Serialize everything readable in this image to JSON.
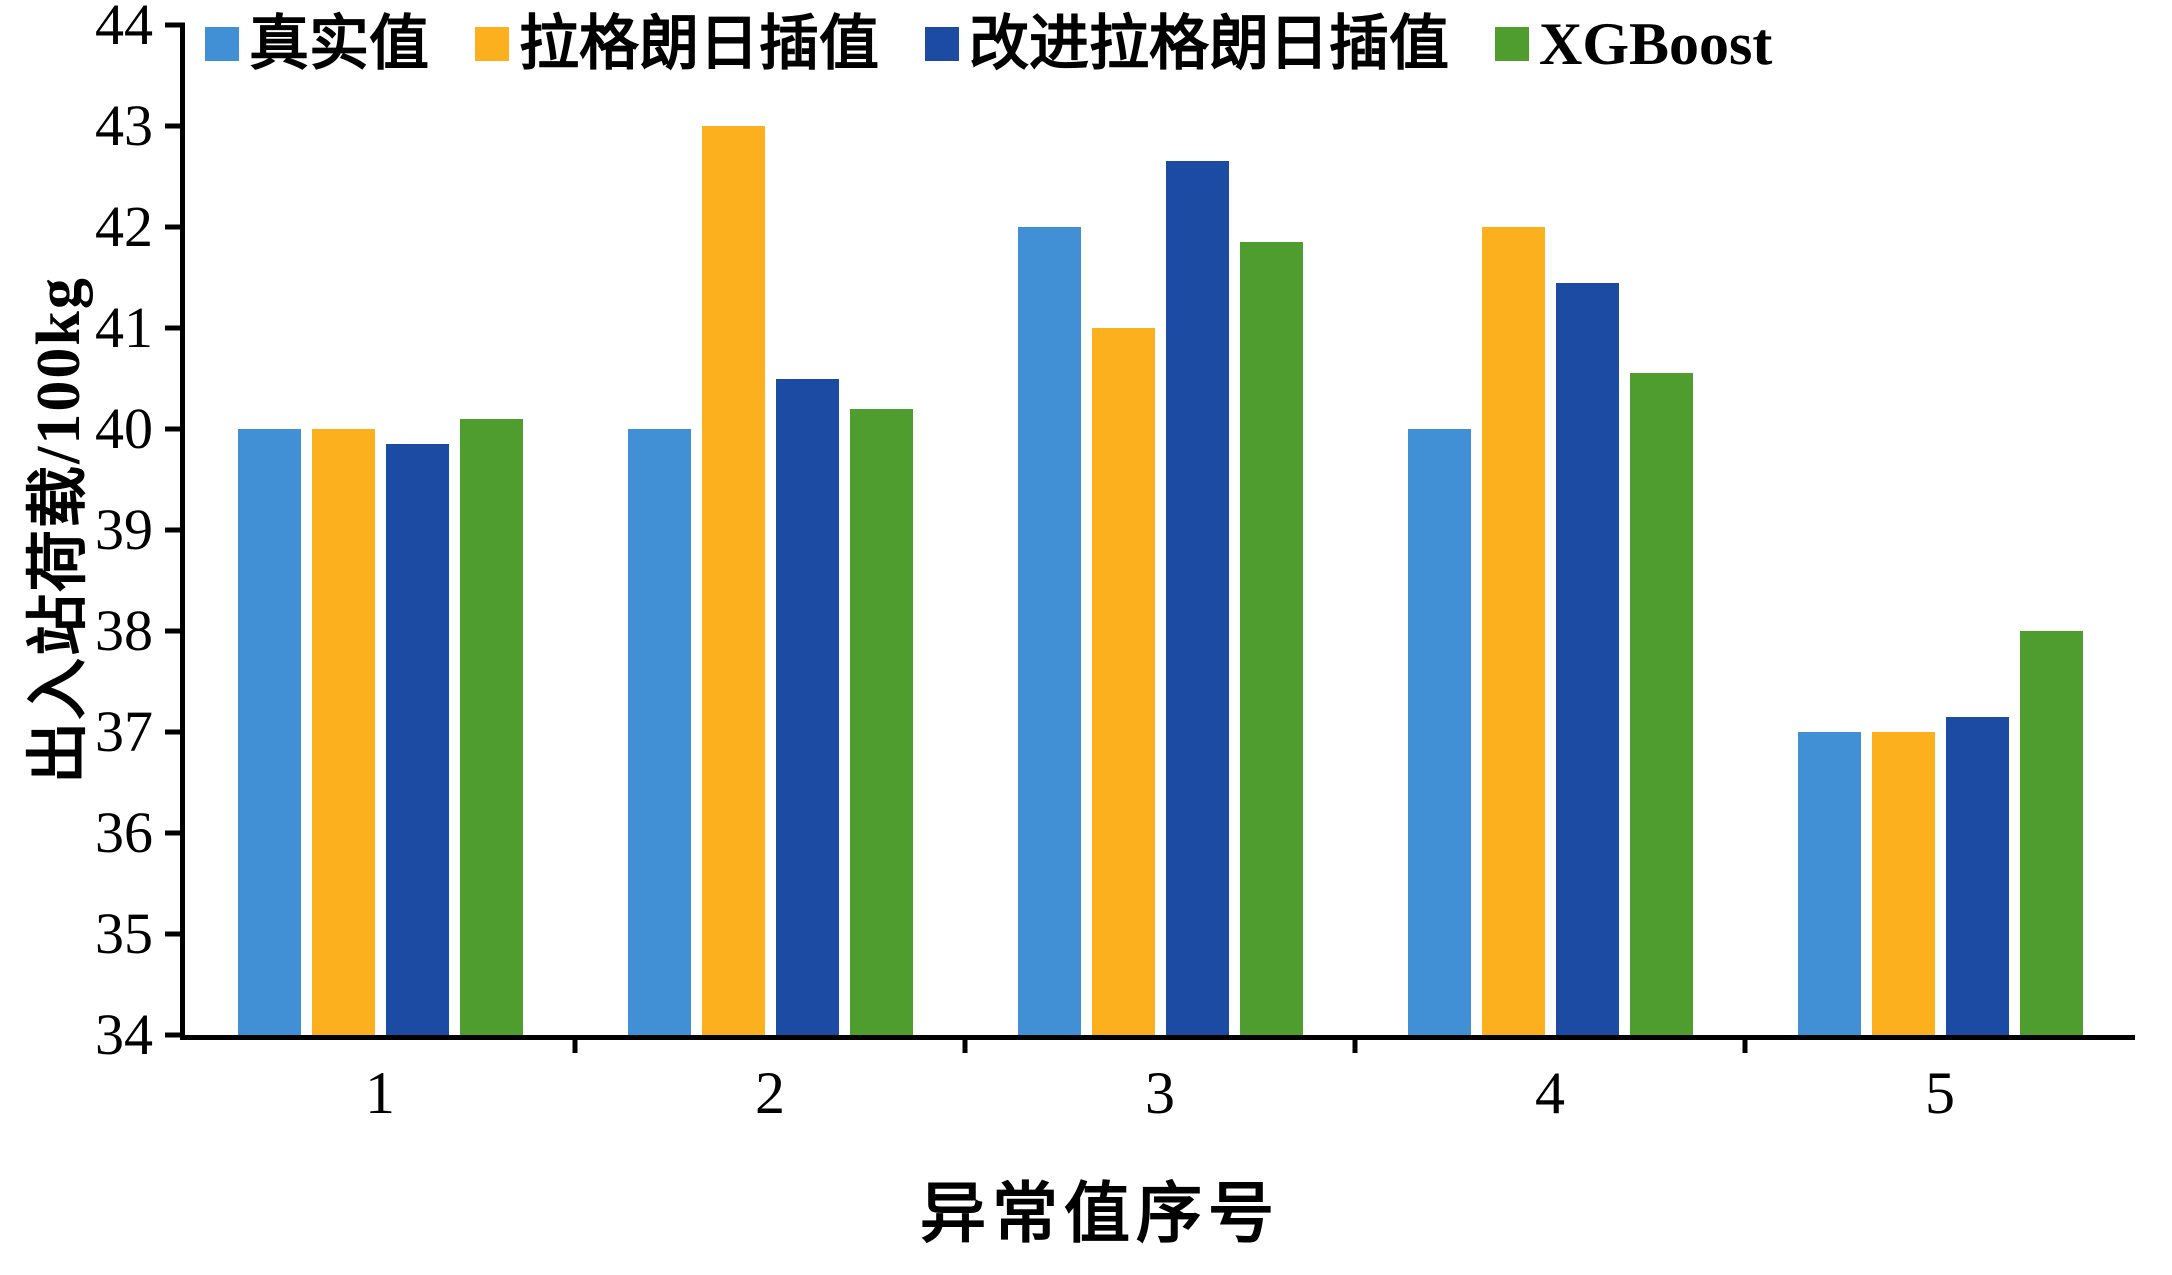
{
  "chart_data": {
    "type": "bar",
    "title": "",
    "xlabel": "异常值序号",
    "ylabel": "出入站荷载/100kg",
    "categories": [
      "1",
      "2",
      "3",
      "4",
      "5"
    ],
    "series": [
      {
        "name": "真实值",
        "color": "#4190d6",
        "values": [
          40.0,
          40.0,
          42.0,
          40.0,
          37.0
        ]
      },
      {
        "name": "拉格朗日插值",
        "color": "#fdb01e",
        "values": [
          40.0,
          43.0,
          41.0,
          42.0,
          37.0
        ]
      },
      {
        "name": "改进拉格朗日插值",
        "color": "#1c4ba3",
        "values": [
          39.85,
          40.5,
          42.65,
          41.45,
          37.15
        ]
      },
      {
        "name": "XGBoost",
        "color": "#4f9d2f",
        "values": [
          40.1,
          40.2,
          41.85,
          40.55,
          38.0
        ]
      }
    ],
    "ylim": [
      34,
      44
    ],
    "ytick_step": 1,
    "legend_position": "top",
    "grid": false,
    "axis_color": "#000000"
  }
}
